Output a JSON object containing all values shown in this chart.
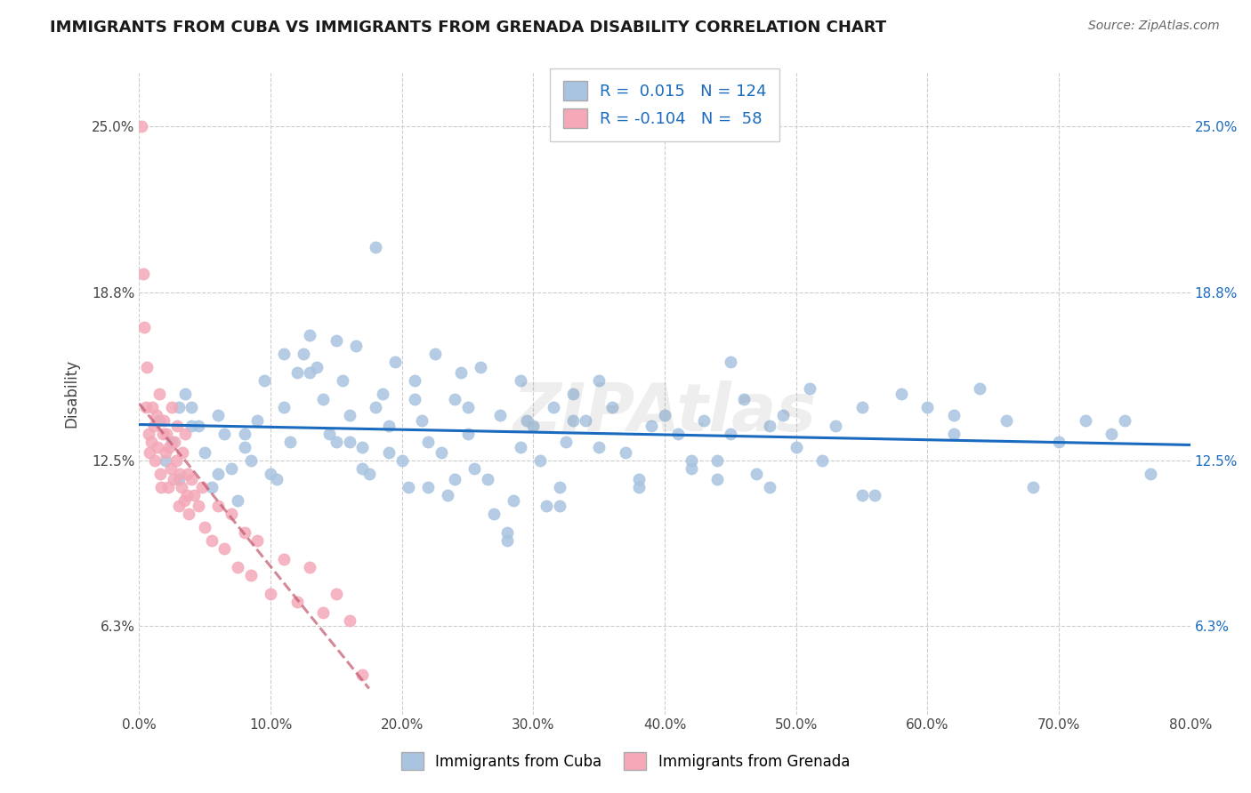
{
  "title": "IMMIGRANTS FROM CUBA VS IMMIGRANTS FROM GRENADA DISABILITY CORRELATION CHART",
  "source": "Source: ZipAtlas.com",
  "ylabel": "Disability",
  "xlim": [
    0.0,
    80.0
  ],
  "ylim": [
    3.0,
    27.0
  ],
  "yticks": [
    6.3,
    12.5,
    18.8,
    25.0
  ],
  "xticks": [
    0.0,
    10.0,
    20.0,
    30.0,
    40.0,
    50.0,
    60.0,
    70.0,
    80.0
  ],
  "xtick_labels": [
    "0.0%",
    "10.0%",
    "20.0%",
    "30.0%",
    "40.0%",
    "50.0%",
    "60.0%",
    "70.0%",
    "80.0%"
  ],
  "ytick_labels": [
    "6.3%",
    "12.5%",
    "18.8%",
    "25.0%"
  ],
  "cuba_color": "#a8c4e0",
  "grenada_color": "#f4a8b8",
  "cuba_line_color": "#1a6bbf",
  "grenada_line_color": "#c0566a",
  "cuba_R": 0.015,
  "cuba_N": 124,
  "grenada_R": -0.104,
  "grenada_N": 58,
  "legend_label_cuba": "Immigrants from Cuba",
  "legend_label_grenada": "Immigrants from Grenada",
  "background_color": "#ffffff",
  "grid_color": "#cccccc",
  "watermark": "ZIPAtlas",
  "cuba_x": [
    1.5,
    2.0,
    2.5,
    3.0,
    3.5,
    4.0,
    4.5,
    5.0,
    5.5,
    6.0,
    6.5,
    7.0,
    7.5,
    8.0,
    8.5,
    9.0,
    9.5,
    10.0,
    10.5,
    11.0,
    11.5,
    12.0,
    12.5,
    13.0,
    13.5,
    14.0,
    14.5,
    15.0,
    15.5,
    16.0,
    16.5,
    17.0,
    17.5,
    18.0,
    18.5,
    19.0,
    19.5,
    20.0,
    20.5,
    21.0,
    21.5,
    22.0,
    22.5,
    23.0,
    23.5,
    24.0,
    24.5,
    25.0,
    25.5,
    26.0,
    26.5,
    27.0,
    27.5,
    28.0,
    28.5,
    29.0,
    29.5,
    30.0,
    30.5,
    31.0,
    31.5,
    32.0,
    32.5,
    33.0,
    34.0,
    35.0,
    36.0,
    37.0,
    38.0,
    39.0,
    40.0,
    41.0,
    42.0,
    43.0,
    44.0,
    45.0,
    46.0,
    47.0,
    48.0,
    49.0,
    50.0,
    51.0,
    52.0,
    53.0,
    55.0,
    56.0,
    58.0,
    60.0,
    62.0,
    64.0,
    66.0,
    68.0,
    70.0,
    72.0,
    74.0,
    75.0,
    77.0,
    45.0,
    32.0,
    18.0,
    22.0,
    28.0,
    15.0,
    19.0,
    25.0,
    38.0,
    42.0,
    48.0,
    55.0,
    62.0,
    35.0,
    29.0,
    21.0,
    17.0,
    13.0,
    11.0,
    8.0,
    6.0,
    4.0,
    3.0,
    16.0,
    24.0,
    33.0,
    44.0
  ],
  "cuba_y": [
    14.0,
    12.5,
    13.2,
    11.8,
    15.0,
    14.5,
    13.8,
    12.8,
    11.5,
    12.0,
    13.5,
    12.2,
    11.0,
    13.0,
    12.5,
    14.0,
    15.5,
    12.0,
    11.8,
    14.5,
    13.2,
    15.8,
    16.5,
    17.2,
    16.0,
    14.8,
    13.5,
    17.0,
    15.5,
    14.2,
    16.8,
    13.0,
    12.0,
    14.5,
    15.0,
    13.8,
    16.2,
    12.5,
    11.5,
    15.5,
    14.0,
    13.2,
    16.5,
    12.8,
    11.2,
    14.8,
    15.8,
    13.5,
    12.2,
    16.0,
    11.8,
    10.5,
    14.2,
    9.5,
    11.0,
    15.5,
    14.0,
    13.8,
    12.5,
    10.8,
    14.5,
    11.5,
    13.2,
    15.0,
    14.0,
    13.0,
    14.5,
    12.8,
    11.5,
    13.8,
    14.2,
    13.5,
    12.2,
    14.0,
    11.8,
    13.5,
    14.8,
    12.0,
    11.5,
    14.2,
    13.0,
    15.2,
    12.5,
    13.8,
    14.5,
    11.2,
    15.0,
    14.5,
    13.5,
    15.2,
    14.0,
    11.5,
    13.2,
    14.0,
    13.5,
    14.0,
    12.0,
    16.2,
    10.8,
    20.5,
    11.5,
    9.8,
    13.2,
    12.8,
    14.5,
    11.8,
    12.5,
    13.8,
    11.2,
    14.2,
    15.5,
    13.0,
    14.8,
    12.2,
    15.8,
    16.5,
    13.5,
    14.2,
    13.8,
    14.5,
    13.2,
    11.8,
    14.0,
    12.5
  ],
  "grenada_x": [
    0.2,
    0.3,
    0.4,
    0.5,
    0.6,
    0.7,
    0.8,
    0.9,
    1.0,
    1.1,
    1.2,
    1.3,
    1.4,
    1.5,
    1.6,
    1.7,
    1.8,
    1.9,
    2.0,
    2.1,
    2.2,
    2.3,
    2.4,
    2.5,
    2.6,
    2.7,
    2.8,
    2.9,
    3.0,
    3.1,
    3.2,
    3.3,
    3.4,
    3.5,
    3.6,
    3.7,
    3.8,
    4.0,
    4.2,
    4.5,
    4.8,
    5.0,
    5.5,
    6.0,
    6.5,
    7.0,
    7.5,
    8.0,
    8.5,
    9.0,
    10.0,
    11.0,
    12.0,
    13.0,
    14.0,
    15.0,
    16.0,
    17.0
  ],
  "grenada_y": [
    25.0,
    19.5,
    17.5,
    14.5,
    16.0,
    13.5,
    12.8,
    13.2,
    14.5,
    13.8,
    12.5,
    14.2,
    13.0,
    15.0,
    12.0,
    11.5,
    13.5,
    14.0,
    12.8,
    13.5,
    11.5,
    13.0,
    12.2,
    14.5,
    11.8,
    13.2,
    12.5,
    13.8,
    10.8,
    12.0,
    11.5,
    12.8,
    11.0,
    13.5,
    11.2,
    12.0,
    10.5,
    11.8,
    11.2,
    10.8,
    11.5,
    10.0,
    9.5,
    10.8,
    9.2,
    10.5,
    8.5,
    9.8,
    8.2,
    9.5,
    7.5,
    8.8,
    7.2,
    8.5,
    6.8,
    7.5,
    6.5,
    4.5
  ]
}
